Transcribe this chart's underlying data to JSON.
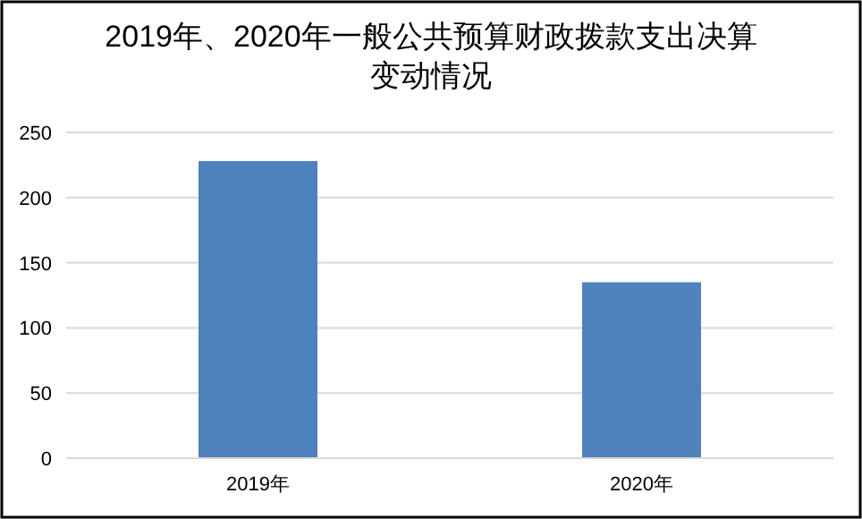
{
  "chart_data": {
    "type": "bar",
    "title": "2019年、2020年一般公共预算财政拨款支出决算变动情况",
    "categories": [
      "2019年",
      "2020年"
    ],
    "values": [
      228,
      135
    ],
    "color": "#4f81bd",
    "ylim": [
      0,
      250
    ],
    "yticks": [
      0,
      50,
      100,
      150,
      200,
      250
    ],
    "grid": "y"
  }
}
